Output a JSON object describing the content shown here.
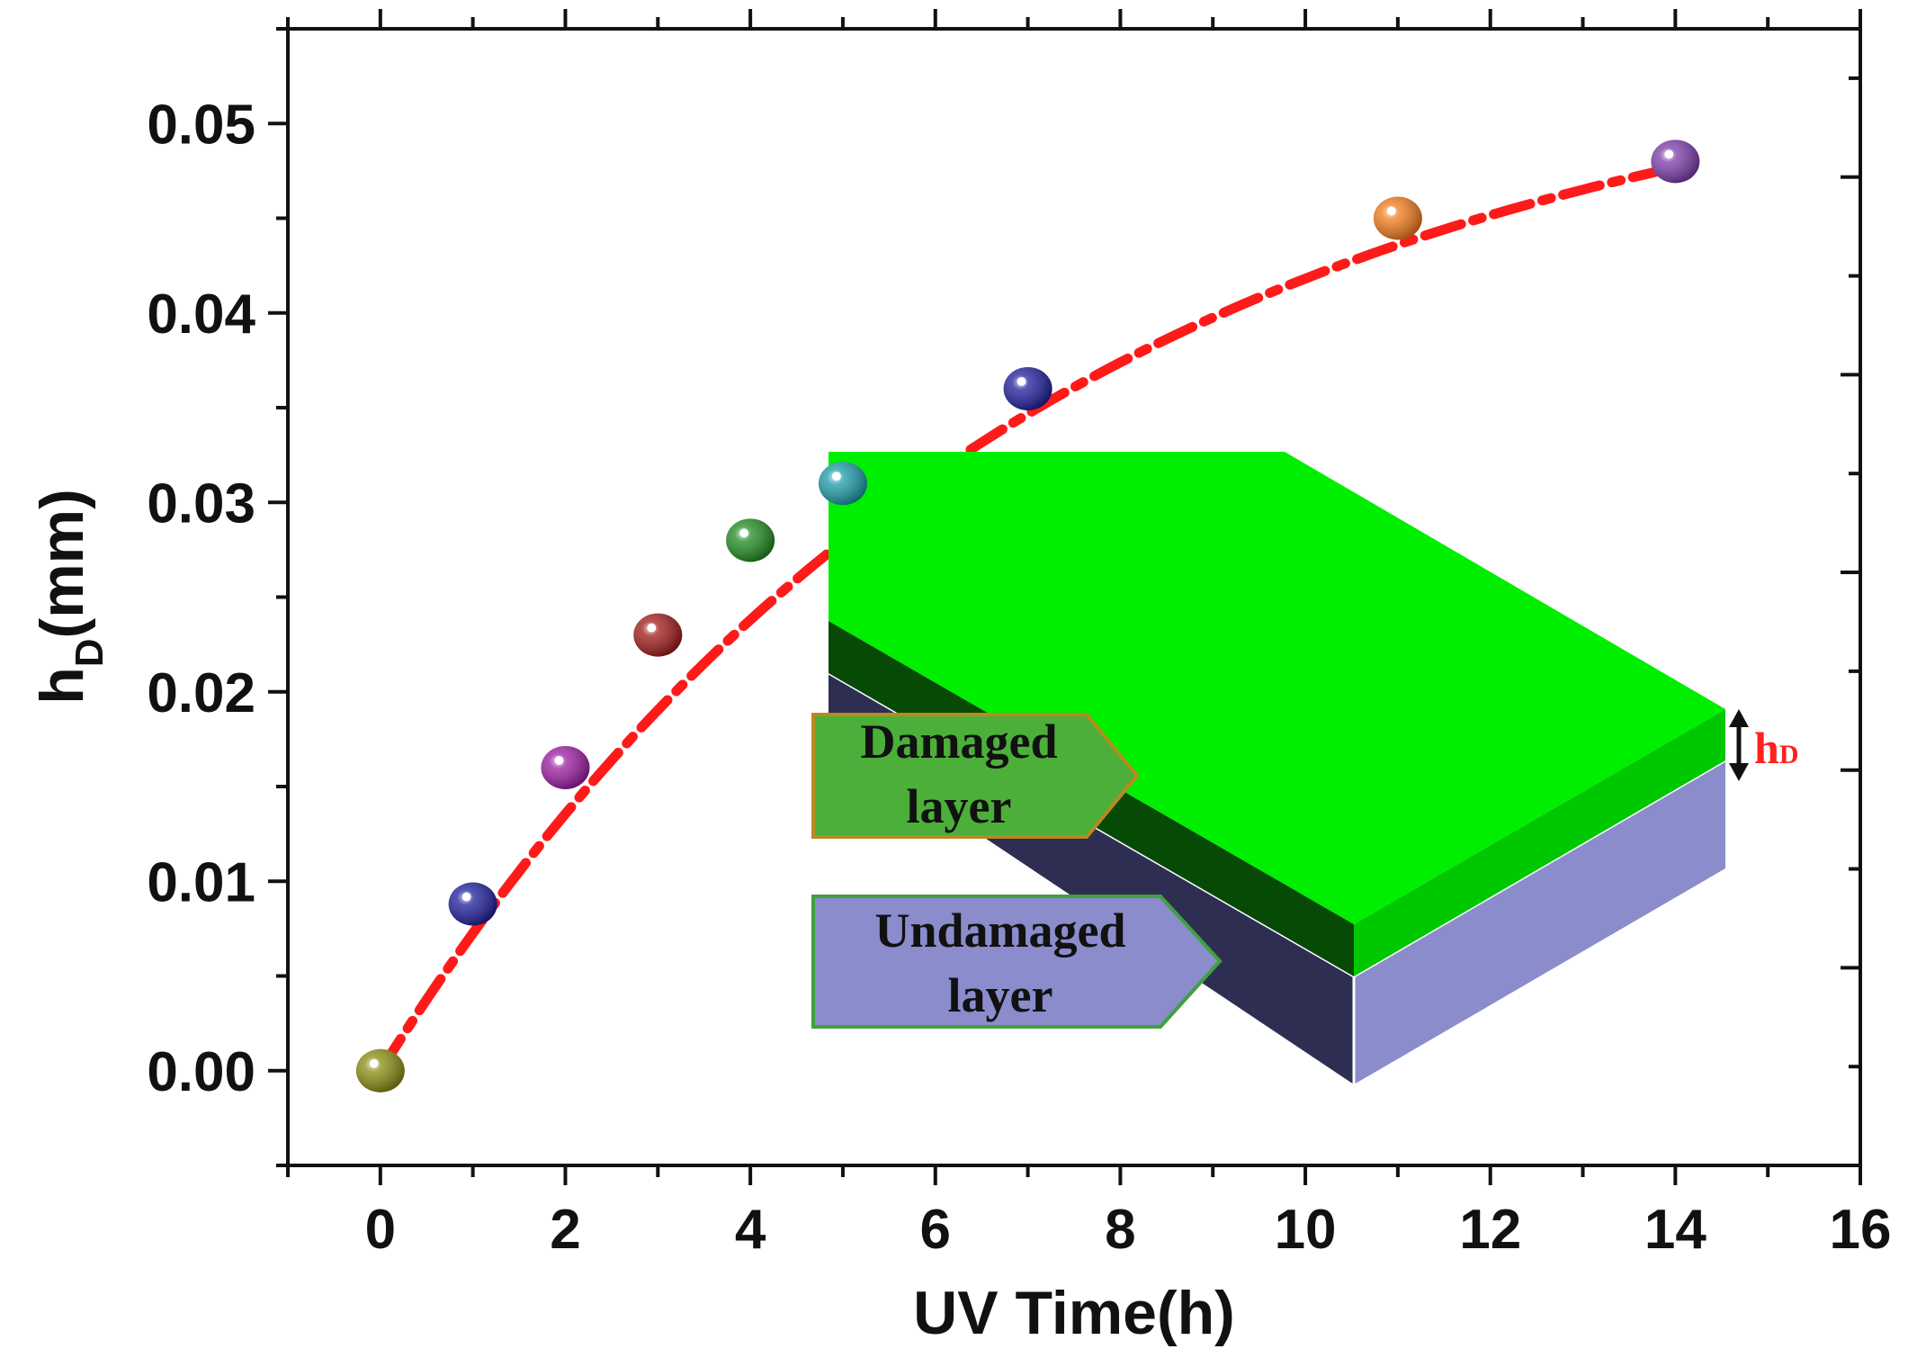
{
  "chart_data": {
    "type": "scatter",
    "title": "",
    "xlabel": "UV Time(h)",
    "ylabel_main": "h",
    "ylabel_sub": "D",
    "ylabel_unit": "(mm)",
    "xlim": [
      -1,
      16
    ],
    "ylim": [
      -0.005,
      0.055
    ],
    "x_ticks": [
      0,
      2,
      4,
      6,
      8,
      10,
      12,
      14,
      16
    ],
    "y_ticks": [
      0.0,
      0.01,
      0.02,
      0.03,
      0.04,
      0.05
    ],
    "y_tick_labels": [
      "0.00",
      "0.01",
      "0.02",
      "0.03",
      "0.04",
      "0.05"
    ],
    "points": [
      {
        "x": 0,
        "y": 0.0,
        "color": "#8a8a10"
      },
      {
        "x": 1,
        "y": 0.0088,
        "color": "#1c1c9a"
      },
      {
        "x": 2,
        "y": 0.016,
        "color": "#9a1aa0"
      },
      {
        "x": 3,
        "y": 0.023,
        "color": "#a01818"
      },
      {
        "x": 4,
        "y": 0.028,
        "color": "#1e8a1e"
      },
      {
        "x": 5,
        "y": 0.031,
        "color": "#1a9aa8"
      },
      {
        "x": 7,
        "y": 0.036,
        "color": "#1c1c9a"
      },
      {
        "x": 11,
        "y": 0.045,
        "color": "#f07a1a"
      },
      {
        "x": 14,
        "y": 0.048,
        "color": "#7a3aa8"
      }
    ],
    "fit_curve": {
      "style": "dash-dot",
      "color": "#ff1a1a",
      "a": 0.0555,
      "k": 0.14
    },
    "inset": {
      "damaged_label_line1": "Damaged",
      "damaged_label_line2": "layer",
      "undamaged_label_line1": "Undamaged",
      "undamaged_label_line2": "layer",
      "thickness_label": "h",
      "thickness_label_sub": "D",
      "damaged_color": "#00ee00",
      "undamaged_color": "#8a8ccc"
    }
  }
}
